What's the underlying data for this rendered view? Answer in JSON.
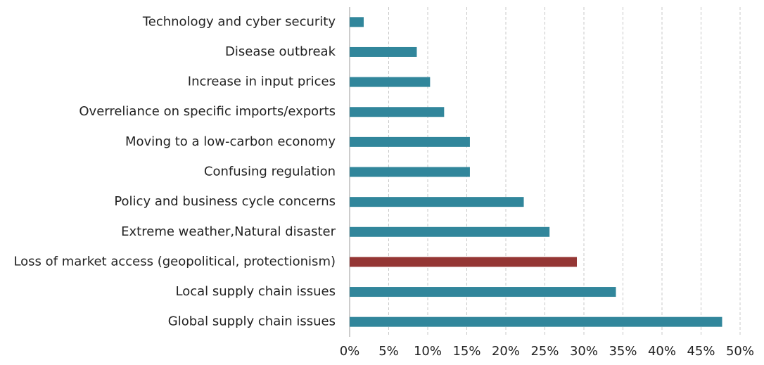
{
  "chart_data": {
    "type": "bar",
    "orientation": "horizontal",
    "categories": [
      "Technology and cyber security",
      "Disease outbreak",
      "Increase in input prices",
      "Overreliance on specific imports/exports ",
      "Moving to a low-carbon economy",
      "Confusing regulation",
      "Policy and business cycle concerns",
      "Extreme weather,Natural disaster",
      "Loss of market access (geopolitical, protectionism)",
      "Local supply chain issues",
      "Global supply chain issues"
    ],
    "values": [
      1.8,
      8.6,
      10.3,
      12.1,
      15.4,
      15.4,
      22.3,
      25.6,
      29.1,
      34.1,
      47.7
    ],
    "colors": [
      "#31869b",
      "#31869b",
      "#31869b",
      "#31869b",
      "#31869b",
      "#31869b",
      "#31869b",
      "#31869b",
      "#943634",
      "#31869b",
      "#31869b"
    ],
    "xlim": [
      0,
      50
    ],
    "xticks": [
      {
        "value": 0,
        "label": "0%"
      },
      {
        "value": 5,
        "label": "5%"
      },
      {
        "value": 10,
        "label": "10%"
      },
      {
        "value": 15,
        "label": "15%"
      },
      {
        "value": 20,
        "label": "20%"
      },
      {
        "value": 25,
        "label": "25%"
      },
      {
        "value": 30,
        "label": "30%"
      },
      {
        "value": 35,
        "label": "35%"
      },
      {
        "value": 40,
        "label": "40%"
      },
      {
        "value": 45,
        "label": "45%"
      },
      {
        "value": 50,
        "label": "50%"
      }
    ],
    "grid": true
  }
}
